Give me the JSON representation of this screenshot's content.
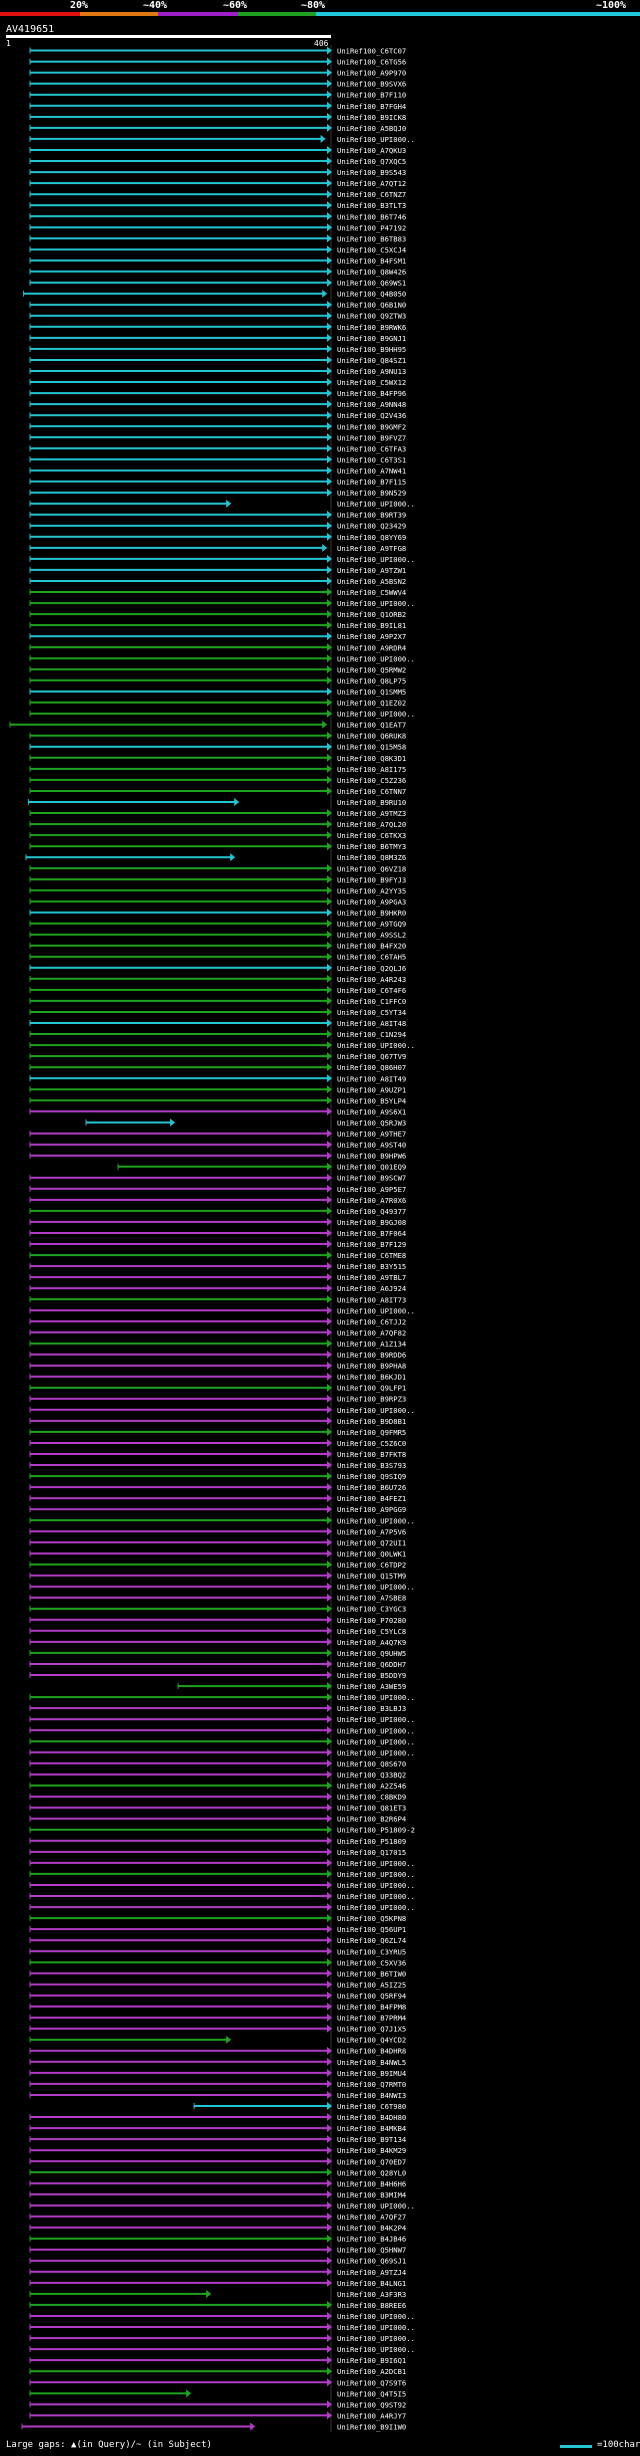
{
  "legend": {
    "segments": [
      {
        "label": "20%",
        "color": "#e01010"
      },
      {
        "label": "~40%",
        "color": "#e07810"
      },
      {
        "label": "~60%",
        "color": "#a020c8"
      },
      {
        "label": "~80%",
        "color": "#20a020"
      },
      {
        "label": "~100%",
        "color": "#20c8d8"
      }
    ]
  },
  "query": {
    "name": "AV419651",
    "start": "1",
    "end": "406"
  },
  "footer": {
    "note": "Large gaps: ▲(in Query)/~ (in Subject)",
    "scale_label": "=100char."
  },
  "colors": {
    "cyan": "#22c5d2",
    "green": "#1ea51e",
    "purple": "#b23cc8"
  },
  "chart_data": {
    "type": "alignment",
    "query_length": 406,
    "subject_ids": [
      "UniRef100_C6TC07",
      "UniRef100_C6TG56",
      "UniRef100_A9P970",
      "UniRef100_B9SVX6",
      "UniRef100_B7F110",
      "UniRef100_B7FGH4",
      "UniRef100_B9ICK8",
      "UniRef100_A5BQJ0",
      "UniRef100_UPI000..",
      "UniRef100_A7QKU3",
      "UniRef100_Q7XQC5",
      "UniRef100_B9S543",
      "UniRef100_A7QT12",
      "UniRef100_C6TNZ7",
      "UniRef100_B3TLT3",
      "UniRef100_B6T746",
      "UniRef100_P47192",
      "UniRef100_B6TB83",
      "UniRef100_C5XCJ4",
      "UniRef100_B4FSM1",
      "UniRef100_Q8W426",
      "UniRef100_Q69WS1",
      "UniRef100_Q4B050",
      "UniRef100_Q6B1N0",
      "UniRef100_Q9ZTW3",
      "UniRef100_B9RWK6",
      "UniRef100_B9GNJ1",
      "UniRef100_B9HH95",
      "UniRef100_Q84SZ1",
      "UniRef100_A9NU13",
      "UniRef100_C5WX12",
      "UniRef100_B4FP96",
      "UniRef100_A9NN48",
      "UniRef100_Q2V436",
      "UniRef100_B9GMF2",
      "UniRef100_B9FVZ7",
      "UniRef100_C6TFA3",
      "UniRef100_C6T3S1",
      "UniRef100_A7NW41",
      "UniRef100_B7F115",
      "UniRef100_B9N529",
      "UniRef100_UPI000..",
      "UniRef100_B9RT39",
      "UniRef100_Q23429",
      "UniRef100_Q8YY69",
      "UniRef100_A9TFG8",
      "UniRef100_UPI000..",
      "UniRef100_A9TZW1",
      "UniRef100_A5BSN2",
      "UniRef100_C5WWV4",
      "UniRef100_UPI000..",
      "UniRef100_Q1ORB2",
      "UniRef100_B9IL81",
      "UniRef100_A9P2X7",
      "UniRef100_A9RDR4",
      "UniRef100_UPI000..",
      "UniRef100_Q5RMW2",
      "UniRef100_Q8LP75",
      "UniRef100_Q1SMM5",
      "UniRef100_Q1EZ02",
      "UniRef100_UPI000..",
      "UniRef100_Q1EAT7",
      "UniRef100_Q6RUK8",
      "UniRef100_Q15M58",
      "UniRef100_Q8K3D1",
      "UniRef100_A8I175",
      "UniRef100_C5Z236",
      "UniRef100_C6TNN7",
      "UniRef100_B9RU10",
      "UniRef100_A9TMZ3",
      "UniRef100_A7QL20",
      "UniRef100_C6TKX3",
      "UniRef100_B6TMY3",
      "UniRef100_Q8M3Z6",
      "UniRef100_Q6VZ18",
      "UniRef100_B9FYJ3",
      "UniRef100_A2YY35",
      "UniRef100_A9PGA3",
      "UniRef100_B9HKR0",
      "UniRef100_A9TGQ9",
      "UniRef100_A9SSL2",
      "UniRef100_B4FX20",
      "UniRef100_C6TAH5",
      "UniRef100_Q2QLJ6",
      "UniRef100_A4R243",
      "UniRef100_C6T4F6",
      "UniRef100_C1FFC0",
      "UniRef100_C5YT34",
      "UniRef100_A8IT48",
      "UniRef100_C1N294",
      "UniRef100_UPI000..",
      "UniRef100_Q67TV9",
      "UniRef100_Q86H07",
      "UniRef100_A8IT49",
      "UniRef100_A9UZP1",
      "UniRef100_B5YLP4",
      "UniRef100_A9S6X1",
      "UniRef100_Q5RJW3",
      "UniRef100_A9THE7",
      "UniRef100_A9ST40",
      "UniRef100_B9HPW6",
      "UniRef100_Q01EQ9",
      "UniRef100_B9SCW7",
      "UniRef100_A9P5E7",
      "UniRef100_A7R0X6",
      "UniRef100_Q49377",
      "UniRef100_B9GJ08",
      "UniRef100_B7F064",
      "UniRef100_B7F129",
      "UniRef100_C6TME8",
      "UniRef100_B3Y515",
      "UniRef100_A9TBL7",
      "UniRef100_A6J924",
      "UniRef100_A8IT73",
      "UniRef100_UPI000..",
      "UniRef100_C6TJJ2",
      "UniRef100_A7QF82",
      "UniRef100_A1Z134",
      "UniRef100_B9RDD6",
      "UniRef100_B9PHA8",
      "UniRef100_B6KJD1",
      "UniRef100_Q9LFP1",
      "UniRef100_B9RPZ3",
      "UniRef100_UPI000..",
      "UniRef100_B9D8B1",
      "UniRef100_Q9FMR5",
      "UniRef100_C5Z6C0",
      "UniRef100_B7FKT8",
      "UniRef100_B3S793",
      "UniRef100_Q9SIQ9",
      "UniRef100_B6U726",
      "UniRef100_B4FEZ1",
      "UniRef100_A9PGG9",
      "UniRef100_UPI000..",
      "UniRef100_A7P5V6",
      "UniRef100_Q72UI1",
      "UniRef100_Q0LWK1",
      "UniRef100_C6TDP2",
      "UniRef100_Q15TM9",
      "UniRef100_UPI000..",
      "UniRef100_A7SBE8",
      "UniRef100_C3YGC3",
      "UniRef100_P70280",
      "UniRef100_C5YLC8",
      "UniRef100_A4Q7K9",
      "UniRef100_Q9UHW5",
      "UniRef100_Q6DDH7",
      "UniRef100_B5DDY9",
      "UniRef100_A3WE59",
      "UniRef100_UPI000..",
      "UniRef100_B3LBJ3",
      "UniRef100_UPI000..",
      "UniRef100_UPI000..",
      "UniRef100_UPI000..",
      "UniRef100_UPI000..",
      "UniRef100_Q8S670",
      "UniRef100_Q33BQ2",
      "UniRef100_A2Z546",
      "UniRef100_C8BKD9",
      "UniRef100_Q81ET3",
      "UniRef100_B2R6P4",
      "UniRef100_P51809-2",
      "UniRef100_P51809",
      "UniRef100_Q17015",
      "UniRef100_UPI000..",
      "UniRef100_UPI000..",
      "UniRef100_UPI000..",
      "UniRef100_UPI000..",
      "UniRef100_UPI000..",
      "UniRef100_Q5KPN8",
      "UniRef100_Q56UP1",
      "UniRef100_Q6ZL74",
      "UniRef100_C3YRU5",
      "UniRef100_C5XV36",
      "UniRef100_B6TIW0",
      "UniRef100_A5IZ25",
      "UniRef100_Q5RF94",
      "UniRef100_B4FPM8",
      "UniRef100_B7PRM4",
      "UniRef100_Q7J1X5",
      "UniRef100_Q4YCD2",
      "UniRef100_B4DHR8",
      "UniRef100_B4NWL5",
      "UniRef100_B9IMU4",
      "UniRef100_Q7RMT0",
      "UniRef100_B4NWI3",
      "UniRef100_C6T980",
      "UniRef100_B4DH80",
      "UniRef100_B4MKB4",
      "UniRef100_B9T134",
      "UniRef100_B4KM29",
      "UniRef100_Q70ED7",
      "UniRef100_Q28YL0",
      "UniRef100_B4H6H6",
      "UniRef100_B3MIM4",
      "UniRef100_UPI000..",
      "UniRef100_A7QF27",
      "UniRef100_B4K2P4",
      "UniRef100_B4JB46",
      "UniRef100_Q5HNW7",
      "UniRef100_Q69SJ1",
      "UniRef100_A9TZJ4",
      "UniRef100_B4LNG1",
      "UniRef100_A3F3R3",
      "UniRef100_B8REE6",
      "UniRef100_UPI000..",
      "UniRef100_UPI000..",
      "UniRef100_UPI000..",
      "UniRef100_UPI000..",
      "UniRef100_B9I6Q1",
      "UniRef100_A2DCB1",
      "UniRef100_Q7S9T6",
      "UniRef100_Q4T5I5",
      "UniRef100_Q9ST92",
      "UniRef100_A4RJY7",
      "UniRef100_B9I1W0"
    ],
    "alignments": [
      {
        "id": "UniRef100_C6TC07",
        "start": 30,
        "end": 406,
        "identity": "~100%"
      },
      {
        "id": "UniRef100_C6TG56",
        "start": 30,
        "end": 406,
        "identity": "~100%"
      },
      {
        "id": "UniRef100_A9P970",
        "start": 30,
        "end": 406,
        "identity": "~100%"
      },
      {
        "id": "UniRef100_UPI000..",
        "start": 30,
        "end": 398,
        "identity": "~100%"
      },
      {
        "id": "UniRef100_Q4B050",
        "start": 22,
        "end": 400,
        "identity": "~100%"
      },
      {
        "id": "UniRef100_A9TFG8",
        "start": 30,
        "end": 400,
        "identity": "~100%"
      },
      {
        "id": "UniRef100_C5WWV4",
        "start": 30,
        "end": 406,
        "identity": "~80%"
      },
      {
        "id": "UniRef100_UPI000..",
        "start": 30,
        "end": 280,
        "identity": "~100%"
      },
      {
        "id": "UniRef100_Q1EAT7",
        "start": 5,
        "end": 400,
        "identity": "~80%"
      },
      {
        "id": "UniRef100_B9RU10",
        "start": 28,
        "end": 290,
        "identity": "~100%"
      },
      {
        "id": "UniRef100_Q8M3Z6",
        "start": 25,
        "end": 285,
        "identity": "~100%"
      },
      {
        "id": "UniRef100_Q5RJW3",
        "start": 100,
        "end": 210,
        "identity": "~100%"
      },
      {
        "id": "UniRef100_Q01EQ9",
        "start": 140,
        "end": 406,
        "identity": "~80%"
      },
      {
        "id": "UniRef100_A3WE59",
        "start": 215,
        "end": 406,
        "identity": "~80%"
      },
      {
        "id": "UniRef100_Q4YCD2",
        "start": 30,
        "end": 280,
        "identity": "~80%"
      },
      {
        "id": "UniRef100_C6T980",
        "start": 235,
        "end": 406,
        "identity": "~100%"
      },
      {
        "id": "UniRef100_A3F3R3",
        "start": 30,
        "end": 255,
        "identity": "~80%"
      },
      {
        "id": "UniRef100_Q4T5I5",
        "start": 30,
        "end": 230,
        "identity": "~80%"
      },
      {
        "id": "UniRef100_B9I1W0",
        "start": 20,
        "end": 310,
        "identity": "~60%"
      }
    ]
  }
}
